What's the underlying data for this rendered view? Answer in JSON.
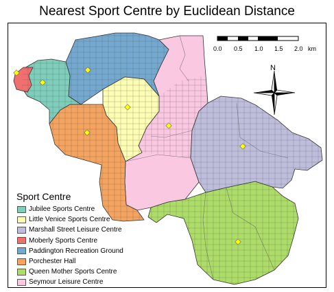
{
  "title": "Nearest Sport Centre by Euclidean Distance",
  "legend": {
    "title": "Sport Centre",
    "items": [
      {
        "label": "Jubilee Sports Centre",
        "color": "#7fcdbb"
      },
      {
        "label": "Little Venice Sports Centre",
        "color": "#fdfdb4"
      },
      {
        "label": "Marshall Street Leisure Centre",
        "color": "#bebedc"
      },
      {
        "label": "Moberly Sports Centre",
        "color": "#f07070"
      },
      {
        "label": "Paddington Recreation Ground",
        "color": "#74a8cf"
      },
      {
        "label": "Porchester Hall",
        "color": "#f4a460"
      },
      {
        "label": "Queen Mother Sports Centre",
        "color": "#addc69"
      },
      {
        "label": "Seymour Leisure Centre",
        "color": "#fbc8e2"
      }
    ]
  },
  "scale_bar": {
    "ticks": [
      "0.0",
      "0.5",
      "1.0",
      "1.5",
      "2.0"
    ],
    "unit": "km"
  },
  "north_arrow": {
    "label": "N"
  },
  "marker_color": "#ffff00"
}
